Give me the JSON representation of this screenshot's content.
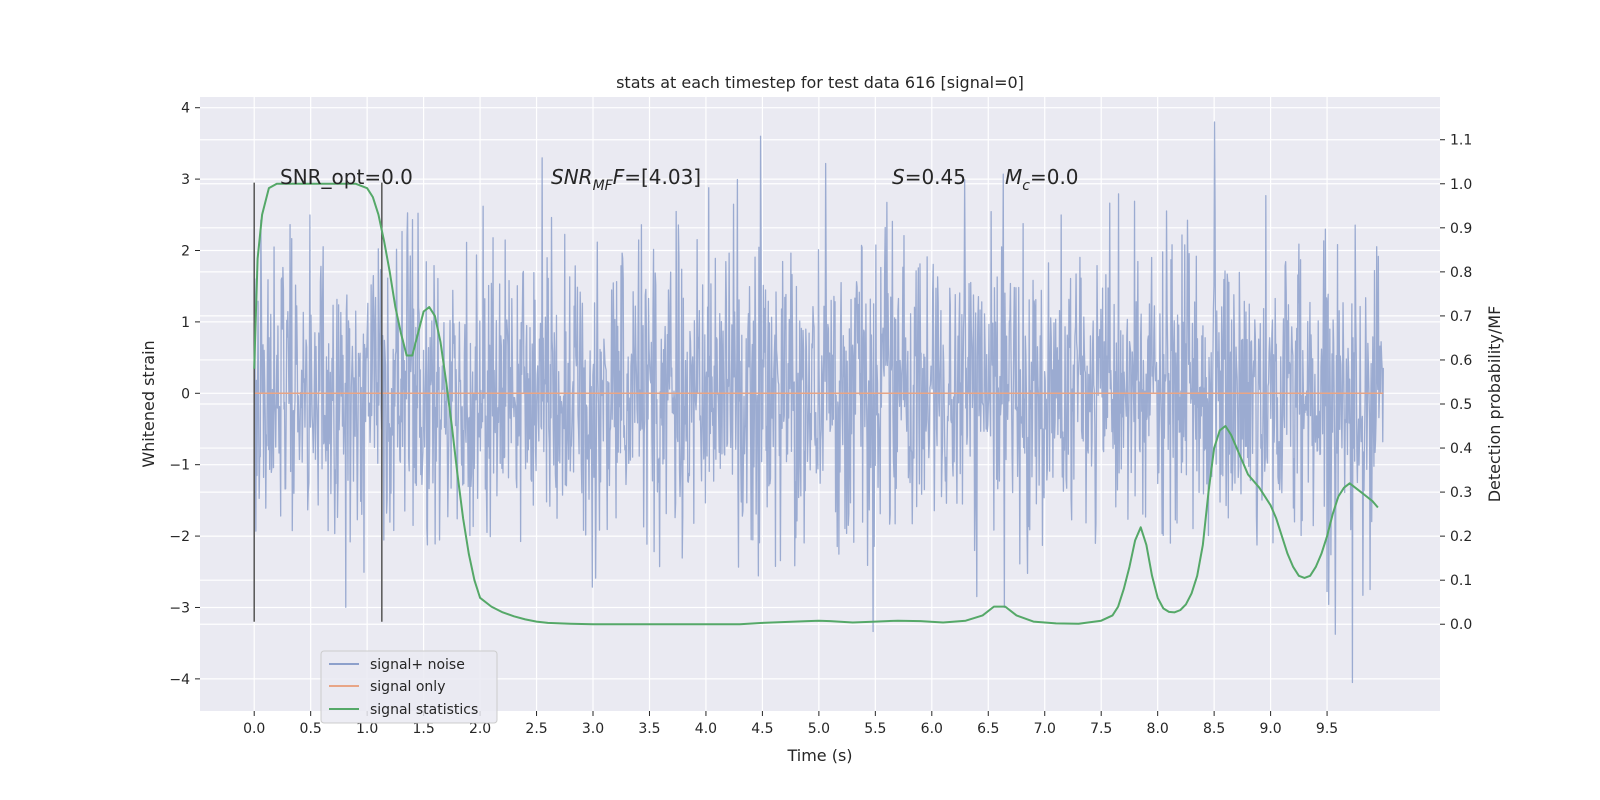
{
  "chart_data": {
    "type": "line",
    "title": "stats at each timestep for test data 616 [signal=0]",
    "xlabel": "Time (s)",
    "ylabel_left": "Whitened strain",
    "ylabel_right": "Detection probability/MF",
    "xlim": [
      -0.48,
      10.5
    ],
    "ylim_left": [
      -4.45,
      4.15
    ],
    "ylim_right": [
      -0.197,
      1.197
    ],
    "x_ticks": [
      0.0,
      0.5,
      1.0,
      1.5,
      2.0,
      2.5,
      3.0,
      3.5,
      4.0,
      4.5,
      5.0,
      5.5,
      6.0,
      6.5,
      7.0,
      7.5,
      8.0,
      8.5,
      9.0,
      9.5
    ],
    "x_tick_labels": [
      "0.0",
      "0.5",
      "1.0",
      "1.5",
      "2.0",
      "2.5",
      "3.0",
      "3.5",
      "4.0",
      "4.5",
      "5.0",
      "5.5",
      "6.0",
      "6.5",
      "7.0",
      "7.5",
      "8.0",
      "8.5",
      "9.0",
      "9.5"
    ],
    "y_left_ticks": [
      4,
      3,
      2,
      1,
      0,
      -1,
      -2,
      -3,
      -4
    ],
    "y_left_tick_labels": [
      "4",
      "3",
      "2",
      "1",
      "0",
      "−1",
      "−2",
      "−3",
      "−4"
    ],
    "y_right_ticks": [
      1.1,
      1.0,
      0.9,
      0.8,
      0.7,
      0.6,
      0.5,
      0.4,
      0.3,
      0.2,
      0.1,
      0.0
    ],
    "y_right_tick_labels": [
      "1.1",
      "1.0",
      "0.9",
      "0.8",
      "0.7",
      "0.6",
      "0.5",
      "0.4",
      "0.3",
      "0.2",
      "0.1",
      "0.0"
    ],
    "grid": true,
    "legend_position": "lower-left",
    "legend": [
      "signal+ noise",
      "signal only",
      "signal statistics"
    ],
    "annotations": {
      "snr_opt": "SNR_opt=0.0",
      "snr_mf_base": "SNR",
      "snr_mf_sub": "MF",
      "snr_mf_italic": "F",
      "snr_mf_value": "=[4.03]",
      "s_symbol": "S",
      "s_value": "=0.45",
      "mc_base": "M",
      "mc_sub": "c",
      "mc_value": "=0.0"
    },
    "markers": [
      {
        "x": 0.0,
        "y_range": [
          -3.2,
          2.95
        ]
      },
      {
        "x": 1.13,
        "y_range": [
          -3.2,
          2.95
        ]
      }
    ],
    "series": [
      {
        "name": "signal+ noise",
        "axis": "left",
        "color": "#8da0cb",
        "x_range": [
          0.0,
          9.998
        ],
        "samples": 2048,
        "noise_std": 1.0,
        "extremes": {
          "max": 3.8,
          "min": -4.05
        }
      },
      {
        "name": "signal only",
        "axis": "left",
        "color": "#e8a586",
        "x": [
          0.0,
          9.998
        ],
        "y": [
          0.0,
          0.0
        ]
      },
      {
        "name": "signal statistics",
        "axis": "right",
        "color": "#55a868",
        "x": [
          0.0,
          0.03,
          0.07,
          0.13,
          0.2,
          0.3,
          0.5,
          0.7,
          0.9,
          1.0,
          1.05,
          1.1,
          1.15,
          1.2,
          1.25,
          1.3,
          1.35,
          1.4,
          1.45,
          1.5,
          1.55,
          1.6,
          1.65,
          1.7,
          1.75,
          1.8,
          1.85,
          1.9,
          1.95,
          2.0,
          2.1,
          2.2,
          2.3,
          2.4,
          2.5,
          2.6,
          2.8,
          3.0,
          3.2,
          3.5,
          3.8,
          4.1,
          4.3,
          4.5,
          4.7,
          4.9,
          5.0,
          5.1,
          5.3,
          5.5,
          5.7,
          5.9,
          6.1,
          6.3,
          6.45,
          6.55,
          6.65,
          6.75,
          6.9,
          7.1,
          7.3,
          7.5,
          7.6,
          7.65,
          7.7,
          7.75,
          7.8,
          7.85,
          7.9,
          7.95,
          8.0,
          8.05,
          8.1,
          8.15,
          8.2,
          8.25,
          8.3,
          8.35,
          8.4,
          8.45,
          8.5,
          8.55,
          8.6,
          8.65,
          8.7,
          8.75,
          8.8,
          8.9,
          9.0,
          9.05,
          9.1,
          9.15,
          9.2,
          9.25,
          9.3,
          9.35,
          9.4,
          9.45,
          9.5,
          9.55,
          9.6,
          9.65,
          9.7,
          9.75,
          9.8,
          9.85,
          9.9,
          9.95
        ],
        "y": [
          0.58,
          0.83,
          0.93,
          0.99,
          1.0,
          1.0,
          1.0,
          1.0,
          1.0,
          0.99,
          0.97,
          0.93,
          0.87,
          0.8,
          0.72,
          0.66,
          0.61,
          0.61,
          0.66,
          0.71,
          0.72,
          0.7,
          0.64,
          0.55,
          0.45,
          0.34,
          0.24,
          0.16,
          0.1,
          0.06,
          0.04,
          0.027,
          0.018,
          0.011,
          0.006,
          0.003,
          0.001,
          0.0,
          0.0,
          0.0,
          0.0,
          0.0,
          0.0,
          0.003,
          0.005,
          0.007,
          0.008,
          0.007,
          0.004,
          0.006,
          0.008,
          0.007,
          0.004,
          0.008,
          0.02,
          0.04,
          0.04,
          0.02,
          0.006,
          0.002,
          0.001,
          0.008,
          0.02,
          0.04,
          0.08,
          0.13,
          0.19,
          0.22,
          0.18,
          0.11,
          0.06,
          0.036,
          0.028,
          0.027,
          0.032,
          0.045,
          0.07,
          0.11,
          0.18,
          0.3,
          0.4,
          0.44,
          0.45,
          0.43,
          0.4,
          0.37,
          0.34,
          0.31,
          0.27,
          0.24,
          0.2,
          0.16,
          0.13,
          0.11,
          0.105,
          0.11,
          0.13,
          0.16,
          0.2,
          0.25,
          0.29,
          0.31,
          0.32,
          0.31,
          0.3,
          0.29,
          0.28,
          0.265
        ]
      }
    ]
  }
}
